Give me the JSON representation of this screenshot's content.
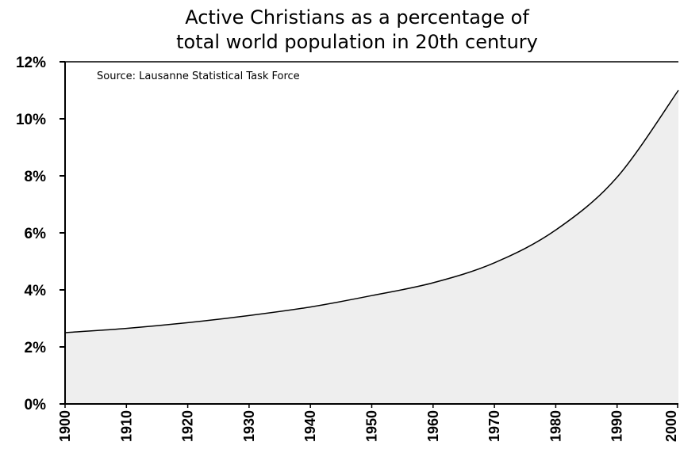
{
  "chart_data": {
    "type": "area",
    "title_lines": [
      "Active Christians as a percentage of",
      "total world population in 20th century"
    ],
    "source": "Source: Lausanne Statistical Task Force",
    "x": [
      1900,
      1910,
      1920,
      1930,
      1940,
      1950,
      1960,
      1970,
      1980,
      1990,
      2000
    ],
    "values": [
      2.5,
      2.65,
      2.85,
      3.1,
      3.4,
      3.8,
      4.25,
      4.95,
      6.1,
      7.95,
      11.0
    ],
    "x_ticks": [
      "1900",
      "1910",
      "1920",
      "1930",
      "1940",
      "1950",
      "1960",
      "1970",
      "1980",
      "1990",
      "2000"
    ],
    "y_ticks": [
      {
        "value": 0,
        "label": "0%"
      },
      {
        "value": 2,
        "label": "2%"
      },
      {
        "value": 4,
        "label": "4%"
      },
      {
        "value": 6,
        "label": "6%"
      },
      {
        "value": 8,
        "label": "8%"
      },
      {
        "value": 10,
        "label": "10%"
      },
      {
        "value": 12,
        "label": "12%"
      }
    ],
    "xlim": [
      1900,
      2000
    ],
    "ylim": [
      0,
      12
    ],
    "grid": false,
    "colors": {
      "fill": "#eeeeee",
      "line": "#000000",
      "axis": "#000000"
    }
  }
}
